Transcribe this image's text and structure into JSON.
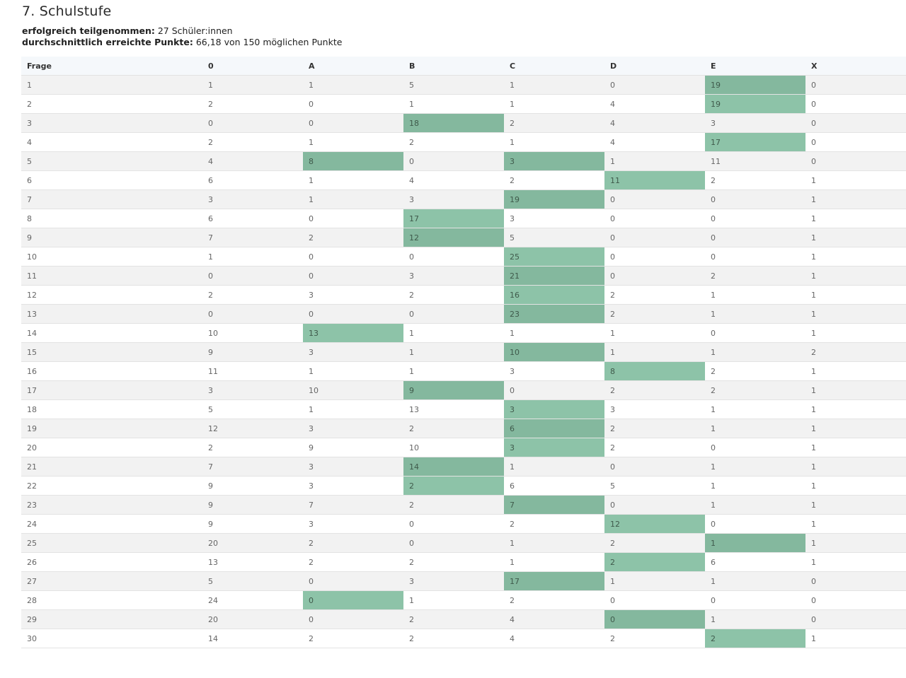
{
  "page": {
    "title": "7. Schulstufe",
    "stats": [
      {
        "label": "erfolgreich teilgenommen:",
        "value": "27 Schüler:innen"
      },
      {
        "label": "durchschnittlich erreichte Punkte:",
        "value": "66,18 von 150 möglichen Punkte"
      }
    ]
  },
  "table": {
    "columns": [
      "Frage",
      "0",
      "A",
      "B",
      "C",
      "D",
      "E",
      "X"
    ],
    "highlight_color_odd": "#84b89e",
    "highlight_color_even": "#8dc3a8",
    "rows": [
      {
        "cells": [
          "1",
          "1",
          "1",
          "5",
          "1",
          "0",
          "19",
          "0"
        ],
        "highlight": [
          "E"
        ]
      },
      {
        "cells": [
          "2",
          "2",
          "0",
          "1",
          "1",
          "4",
          "19",
          "0"
        ],
        "highlight": [
          "E"
        ]
      },
      {
        "cells": [
          "3",
          "0",
          "0",
          "18",
          "2",
          "4",
          "3",
          "0"
        ],
        "highlight": [
          "B"
        ]
      },
      {
        "cells": [
          "4",
          "2",
          "1",
          "2",
          "1",
          "4",
          "17",
          "0"
        ],
        "highlight": [
          "E"
        ]
      },
      {
        "cells": [
          "5",
          "4",
          "8",
          "0",
          "3",
          "1",
          "11",
          "0"
        ],
        "highlight": [
          "A",
          "C"
        ]
      },
      {
        "cells": [
          "6",
          "6",
          "1",
          "4",
          "2",
          "11",
          "2",
          "1"
        ],
        "highlight": [
          "D"
        ]
      },
      {
        "cells": [
          "7",
          "3",
          "1",
          "3",
          "19",
          "0",
          "0",
          "1"
        ],
        "highlight": [
          "C"
        ]
      },
      {
        "cells": [
          "8",
          "6",
          "0",
          "17",
          "3",
          "0",
          "0",
          "1"
        ],
        "highlight": [
          "B"
        ]
      },
      {
        "cells": [
          "9",
          "7",
          "2",
          "12",
          "5",
          "0",
          "0",
          "1"
        ],
        "highlight": [
          "B"
        ]
      },
      {
        "cells": [
          "10",
          "1",
          "0",
          "0",
          "25",
          "0",
          "0",
          "1"
        ],
        "highlight": [
          "C"
        ]
      },
      {
        "cells": [
          "11",
          "0",
          "0",
          "3",
          "21",
          "0",
          "2",
          "1"
        ],
        "highlight": [
          "C"
        ]
      },
      {
        "cells": [
          "12",
          "2",
          "3",
          "2",
          "16",
          "2",
          "1",
          "1"
        ],
        "highlight": [
          "C"
        ]
      },
      {
        "cells": [
          "13",
          "0",
          "0",
          "0",
          "23",
          "2",
          "1",
          "1"
        ],
        "highlight": [
          "C"
        ]
      },
      {
        "cells": [
          "14",
          "10",
          "13",
          "1",
          "1",
          "1",
          "0",
          "1"
        ],
        "highlight": [
          "A"
        ]
      },
      {
        "cells": [
          "15",
          "9",
          "3",
          "1",
          "10",
          "1",
          "1",
          "2"
        ],
        "highlight": [
          "C"
        ]
      },
      {
        "cells": [
          "16",
          "11",
          "1",
          "1",
          "3",
          "8",
          "2",
          "1"
        ],
        "highlight": [
          "D"
        ]
      },
      {
        "cells": [
          "17",
          "3",
          "10",
          "9",
          "0",
          "2",
          "2",
          "1"
        ],
        "highlight": [
          "B"
        ]
      },
      {
        "cells": [
          "18",
          "5",
          "1",
          "13",
          "3",
          "3",
          "1",
          "1"
        ],
        "highlight": [
          "C"
        ]
      },
      {
        "cells": [
          "19",
          "12",
          "3",
          "2",
          "6",
          "2",
          "1",
          "1"
        ],
        "highlight": [
          "C"
        ]
      },
      {
        "cells": [
          "20",
          "2",
          "9",
          "10",
          "3",
          "2",
          "0",
          "1"
        ],
        "highlight": [
          "C"
        ]
      },
      {
        "cells": [
          "21",
          "7",
          "3",
          "14",
          "1",
          "0",
          "1",
          "1"
        ],
        "highlight": [
          "B"
        ]
      },
      {
        "cells": [
          "22",
          "9",
          "3",
          "2",
          "6",
          "5",
          "1",
          "1"
        ],
        "highlight": [
          "B"
        ]
      },
      {
        "cells": [
          "23",
          "9",
          "7",
          "2",
          "7",
          "0",
          "1",
          "1"
        ],
        "highlight": [
          "C"
        ]
      },
      {
        "cells": [
          "24",
          "9",
          "3",
          "0",
          "2",
          "12",
          "0",
          "1"
        ],
        "highlight": [
          "D"
        ]
      },
      {
        "cells": [
          "25",
          "20",
          "2",
          "0",
          "1",
          "2",
          "1",
          "1"
        ],
        "highlight": [
          "E"
        ]
      },
      {
        "cells": [
          "26",
          "13",
          "2",
          "2",
          "1",
          "2",
          "6",
          "1"
        ],
        "highlight": [
          "D"
        ]
      },
      {
        "cells": [
          "27",
          "5",
          "0",
          "3",
          "17",
          "1",
          "1",
          "0"
        ],
        "highlight": [
          "C"
        ]
      },
      {
        "cells": [
          "28",
          "24",
          "0",
          "1",
          "2",
          "0",
          "0",
          "0"
        ],
        "highlight": [
          "A"
        ]
      },
      {
        "cells": [
          "29",
          "20",
          "0",
          "2",
          "4",
          "0",
          "1",
          "0"
        ],
        "highlight": [
          "D"
        ]
      },
      {
        "cells": [
          "30",
          "14",
          "2",
          "2",
          "4",
          "2",
          "2",
          "1"
        ],
        "highlight": [
          "E"
        ]
      }
    ]
  }
}
